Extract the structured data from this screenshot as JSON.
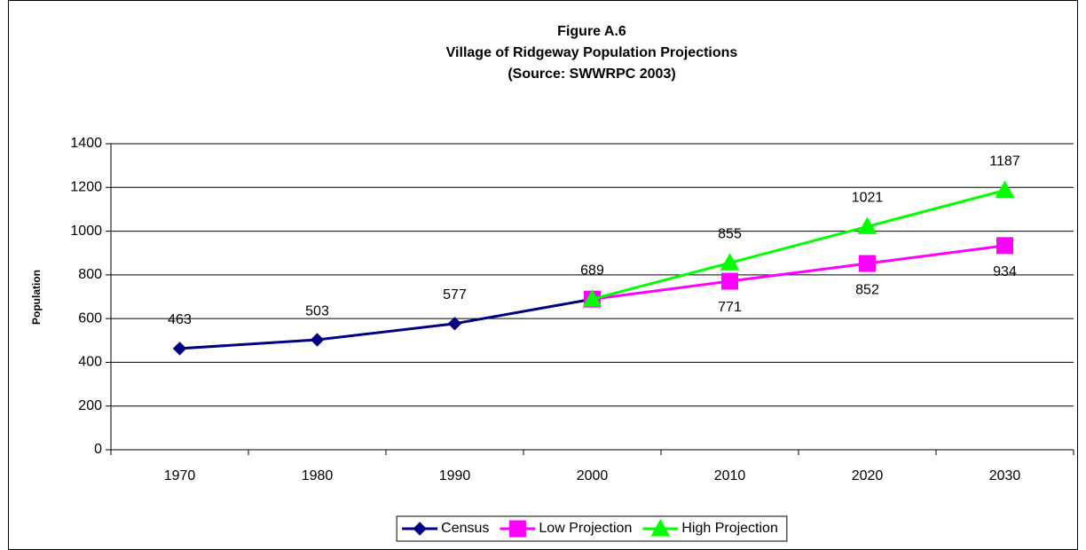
{
  "chart_data": {
    "type": "line",
    "title": [
      "Figure A.6",
      "Village of Ridgeway Population Projections",
      "(Source:  SWWRPC 2003)"
    ],
    "y_label": "Population",
    "categories": [
      "1970",
      "1980",
      "1990",
      "2000",
      "2010",
      "2020",
      "2030"
    ],
    "series": [
      {
        "name": "Census",
        "color": "#000080",
        "marker": "diamond",
        "label_position": "above",
        "values": [
          463,
          503,
          577,
          689,
          null,
          null,
          null
        ]
      },
      {
        "name": "Low Projection",
        "color": "#ff00ff",
        "marker": "square",
        "label_position": "below",
        "values": [
          null,
          null,
          null,
          689,
          771,
          852,
          934
        ]
      },
      {
        "name": "High Projection",
        "color": "#00ff00",
        "marker": "triangle",
        "label_position": "above",
        "values": [
          null,
          null,
          null,
          689,
          855,
          1021,
          1187
        ]
      }
    ],
    "ylim": [
      0,
      1400
    ],
    "yticks": [
      0,
      200,
      400,
      600,
      800,
      1000,
      1200,
      1400
    ],
    "grid": true,
    "legend": "bottom"
  }
}
